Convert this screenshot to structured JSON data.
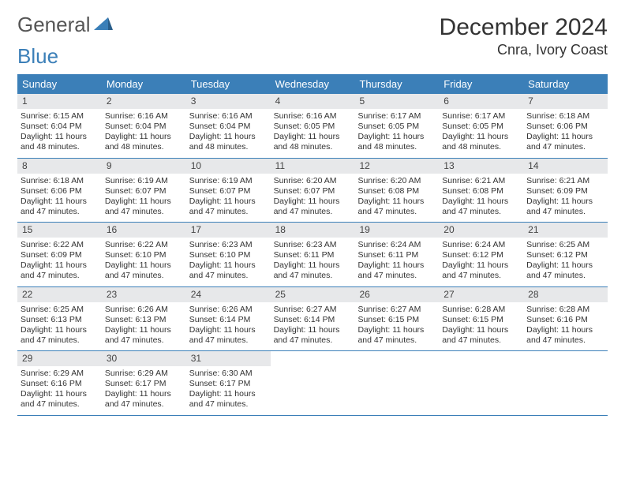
{
  "branding": {
    "logo_text_1": "General",
    "logo_text_2": "Blue",
    "logo_color_gray": "#555555",
    "logo_color_blue": "#3b7fb8"
  },
  "header": {
    "title": "December 2024",
    "location": "Cnra, Ivory Coast"
  },
  "colors": {
    "header_bar": "#3b7fb8",
    "daynum_bg": "#e7e8ea",
    "week_divider": "#3b7fb8",
    "text": "#333333",
    "background": "#ffffff"
  },
  "fonts": {
    "title_size_pt": 22,
    "location_size_pt": 14,
    "dow_size_pt": 10,
    "body_size_pt": 8
  },
  "calendar": {
    "day_names": [
      "Sunday",
      "Monday",
      "Tuesday",
      "Wednesday",
      "Thursday",
      "Friday",
      "Saturday"
    ],
    "weeks": [
      [
        {
          "n": "1",
          "sunrise": "Sunrise: 6:15 AM",
          "sunset": "Sunset: 6:04 PM",
          "daylight": "Daylight: 11 hours and 48 minutes."
        },
        {
          "n": "2",
          "sunrise": "Sunrise: 6:16 AM",
          "sunset": "Sunset: 6:04 PM",
          "daylight": "Daylight: 11 hours and 48 minutes."
        },
        {
          "n": "3",
          "sunrise": "Sunrise: 6:16 AM",
          "sunset": "Sunset: 6:04 PM",
          "daylight": "Daylight: 11 hours and 48 minutes."
        },
        {
          "n": "4",
          "sunrise": "Sunrise: 6:16 AM",
          "sunset": "Sunset: 6:05 PM",
          "daylight": "Daylight: 11 hours and 48 minutes."
        },
        {
          "n": "5",
          "sunrise": "Sunrise: 6:17 AM",
          "sunset": "Sunset: 6:05 PM",
          "daylight": "Daylight: 11 hours and 48 minutes."
        },
        {
          "n": "6",
          "sunrise": "Sunrise: 6:17 AM",
          "sunset": "Sunset: 6:05 PM",
          "daylight": "Daylight: 11 hours and 48 minutes."
        },
        {
          "n": "7",
          "sunrise": "Sunrise: 6:18 AM",
          "sunset": "Sunset: 6:06 PM",
          "daylight": "Daylight: 11 hours and 47 minutes."
        }
      ],
      [
        {
          "n": "8",
          "sunrise": "Sunrise: 6:18 AM",
          "sunset": "Sunset: 6:06 PM",
          "daylight": "Daylight: 11 hours and 47 minutes."
        },
        {
          "n": "9",
          "sunrise": "Sunrise: 6:19 AM",
          "sunset": "Sunset: 6:07 PM",
          "daylight": "Daylight: 11 hours and 47 minutes."
        },
        {
          "n": "10",
          "sunrise": "Sunrise: 6:19 AM",
          "sunset": "Sunset: 6:07 PM",
          "daylight": "Daylight: 11 hours and 47 minutes."
        },
        {
          "n": "11",
          "sunrise": "Sunrise: 6:20 AM",
          "sunset": "Sunset: 6:07 PM",
          "daylight": "Daylight: 11 hours and 47 minutes."
        },
        {
          "n": "12",
          "sunrise": "Sunrise: 6:20 AM",
          "sunset": "Sunset: 6:08 PM",
          "daylight": "Daylight: 11 hours and 47 minutes."
        },
        {
          "n": "13",
          "sunrise": "Sunrise: 6:21 AM",
          "sunset": "Sunset: 6:08 PM",
          "daylight": "Daylight: 11 hours and 47 minutes."
        },
        {
          "n": "14",
          "sunrise": "Sunrise: 6:21 AM",
          "sunset": "Sunset: 6:09 PM",
          "daylight": "Daylight: 11 hours and 47 minutes."
        }
      ],
      [
        {
          "n": "15",
          "sunrise": "Sunrise: 6:22 AM",
          "sunset": "Sunset: 6:09 PM",
          "daylight": "Daylight: 11 hours and 47 minutes."
        },
        {
          "n": "16",
          "sunrise": "Sunrise: 6:22 AM",
          "sunset": "Sunset: 6:10 PM",
          "daylight": "Daylight: 11 hours and 47 minutes."
        },
        {
          "n": "17",
          "sunrise": "Sunrise: 6:23 AM",
          "sunset": "Sunset: 6:10 PM",
          "daylight": "Daylight: 11 hours and 47 minutes."
        },
        {
          "n": "18",
          "sunrise": "Sunrise: 6:23 AM",
          "sunset": "Sunset: 6:11 PM",
          "daylight": "Daylight: 11 hours and 47 minutes."
        },
        {
          "n": "19",
          "sunrise": "Sunrise: 6:24 AM",
          "sunset": "Sunset: 6:11 PM",
          "daylight": "Daylight: 11 hours and 47 minutes."
        },
        {
          "n": "20",
          "sunrise": "Sunrise: 6:24 AM",
          "sunset": "Sunset: 6:12 PM",
          "daylight": "Daylight: 11 hours and 47 minutes."
        },
        {
          "n": "21",
          "sunrise": "Sunrise: 6:25 AM",
          "sunset": "Sunset: 6:12 PM",
          "daylight": "Daylight: 11 hours and 47 minutes."
        }
      ],
      [
        {
          "n": "22",
          "sunrise": "Sunrise: 6:25 AM",
          "sunset": "Sunset: 6:13 PM",
          "daylight": "Daylight: 11 hours and 47 minutes."
        },
        {
          "n": "23",
          "sunrise": "Sunrise: 6:26 AM",
          "sunset": "Sunset: 6:13 PM",
          "daylight": "Daylight: 11 hours and 47 minutes."
        },
        {
          "n": "24",
          "sunrise": "Sunrise: 6:26 AM",
          "sunset": "Sunset: 6:14 PM",
          "daylight": "Daylight: 11 hours and 47 minutes."
        },
        {
          "n": "25",
          "sunrise": "Sunrise: 6:27 AM",
          "sunset": "Sunset: 6:14 PM",
          "daylight": "Daylight: 11 hours and 47 minutes."
        },
        {
          "n": "26",
          "sunrise": "Sunrise: 6:27 AM",
          "sunset": "Sunset: 6:15 PM",
          "daylight": "Daylight: 11 hours and 47 minutes."
        },
        {
          "n": "27",
          "sunrise": "Sunrise: 6:28 AM",
          "sunset": "Sunset: 6:15 PM",
          "daylight": "Daylight: 11 hours and 47 minutes."
        },
        {
          "n": "28",
          "sunrise": "Sunrise: 6:28 AM",
          "sunset": "Sunset: 6:16 PM",
          "daylight": "Daylight: 11 hours and 47 minutes."
        }
      ],
      [
        {
          "n": "29",
          "sunrise": "Sunrise: 6:29 AM",
          "sunset": "Sunset: 6:16 PM",
          "daylight": "Daylight: 11 hours and 47 minutes."
        },
        {
          "n": "30",
          "sunrise": "Sunrise: 6:29 AM",
          "sunset": "Sunset: 6:17 PM",
          "daylight": "Daylight: 11 hours and 47 minutes."
        },
        {
          "n": "31",
          "sunrise": "Sunrise: 6:30 AM",
          "sunset": "Sunset: 6:17 PM",
          "daylight": "Daylight: 11 hours and 47 minutes."
        },
        {
          "empty": true
        },
        {
          "empty": true
        },
        {
          "empty": true
        },
        {
          "empty": true
        }
      ]
    ]
  }
}
